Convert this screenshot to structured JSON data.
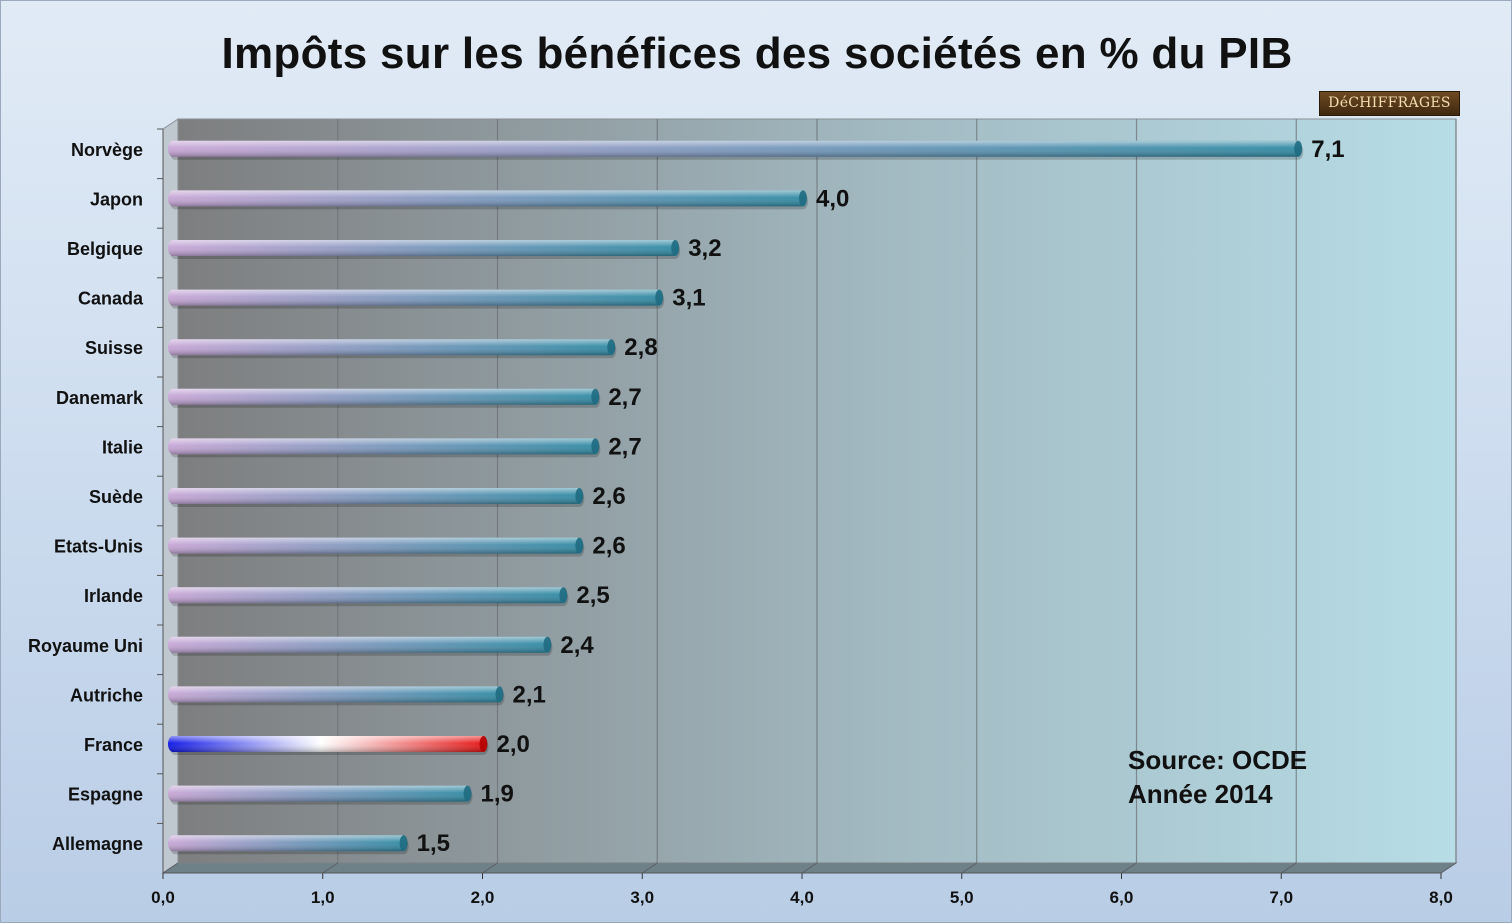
{
  "chart_data": {
    "type": "bar",
    "orientation": "horizontal",
    "title": "Impôts sur les bénéfices des sociétés en % du PIB",
    "categories": [
      "Norvège",
      "Japon",
      "Belgique",
      "Canada",
      "Suisse",
      "Danemark",
      "Italie",
      "Suède",
      "Etats-Unis",
      "Irlande",
      "Royaume Uni",
      "Autriche",
      "France",
      "Espagne",
      "Allemagne"
    ],
    "values": [
      7.1,
      4.0,
      3.2,
      3.1,
      2.8,
      2.7,
      2.7,
      2.6,
      2.6,
      2.5,
      2.4,
      2.1,
      2.0,
      1.9,
      1.5
    ],
    "value_labels": [
      "7,1",
      "4,0",
      "3,2",
      "3,1",
      "2,8",
      "2,7",
      "2,7",
      "2,6",
      "2,6",
      "2,5",
      "2,4",
      "2,1",
      "2,0",
      "1,9",
      "1,5"
    ],
    "xlim": [
      0,
      8
    ],
    "x_ticks": [
      0,
      1,
      2,
      3,
      4,
      5,
      6,
      7,
      8
    ],
    "x_tick_labels": [
      "0,0",
      "1,0",
      "2,0",
      "3,0",
      "4,0",
      "5,0",
      "6,0",
      "7,0",
      "8,0"
    ],
    "xlabel": "",
    "ylabel": "",
    "grid": true,
    "highlight_category": "France",
    "colors": {
      "bar_start": "#c7a6d6",
      "bar_end": "#2f8aa3",
      "highlight_blue": "#0a12e6",
      "highlight_white": "#ffffff",
      "highlight_red": "#e50d0d"
    }
  },
  "logo_text": "DéCHIFFRAGES",
  "source_lines": [
    "Source: OCDE",
    "Année 2014"
  ]
}
